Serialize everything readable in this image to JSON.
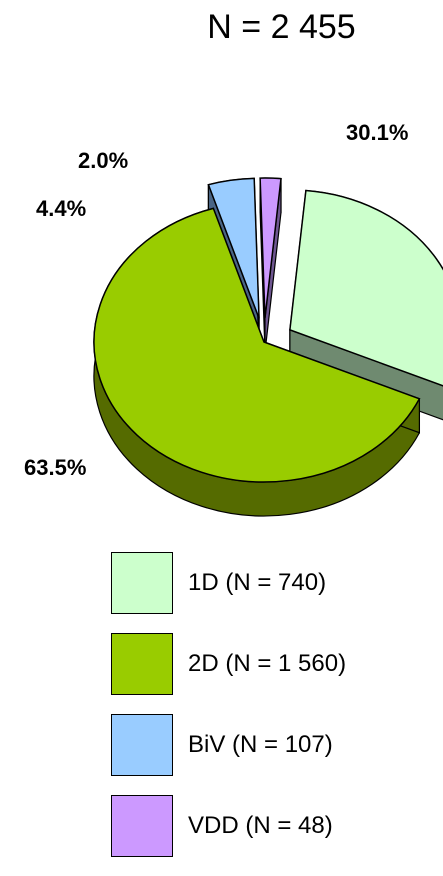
{
  "chart_data": {
    "type": "pie",
    "title": "N = 2 455",
    "slices": [
      {
        "name": "1D (N = 740)",
        "value": 740,
        "percent_label": "30.1%",
        "color": "#ccffcc",
        "side_color": "#6f8a70",
        "exploded": true
      },
      {
        "name": "2D (N = 1 560)",
        "value": 1560,
        "percent_label": "63.5%",
        "color": "#99cc00",
        "side_color": "#556b00",
        "exploded": false
      },
      {
        "name": "BiV (N = 107)",
        "value": 107,
        "percent_label": "4.4%",
        "color": "#99ccff",
        "side_color": "#4a6585",
        "exploded": true
      },
      {
        "name": "VDD (N = 48)",
        "value": 48,
        "percent_label": "2.0%",
        "color": "#cc99ff",
        "side_color": "#6e5690",
        "exploded": true
      }
    ],
    "legend_position": "bottom",
    "style": "3d-exploded"
  }
}
